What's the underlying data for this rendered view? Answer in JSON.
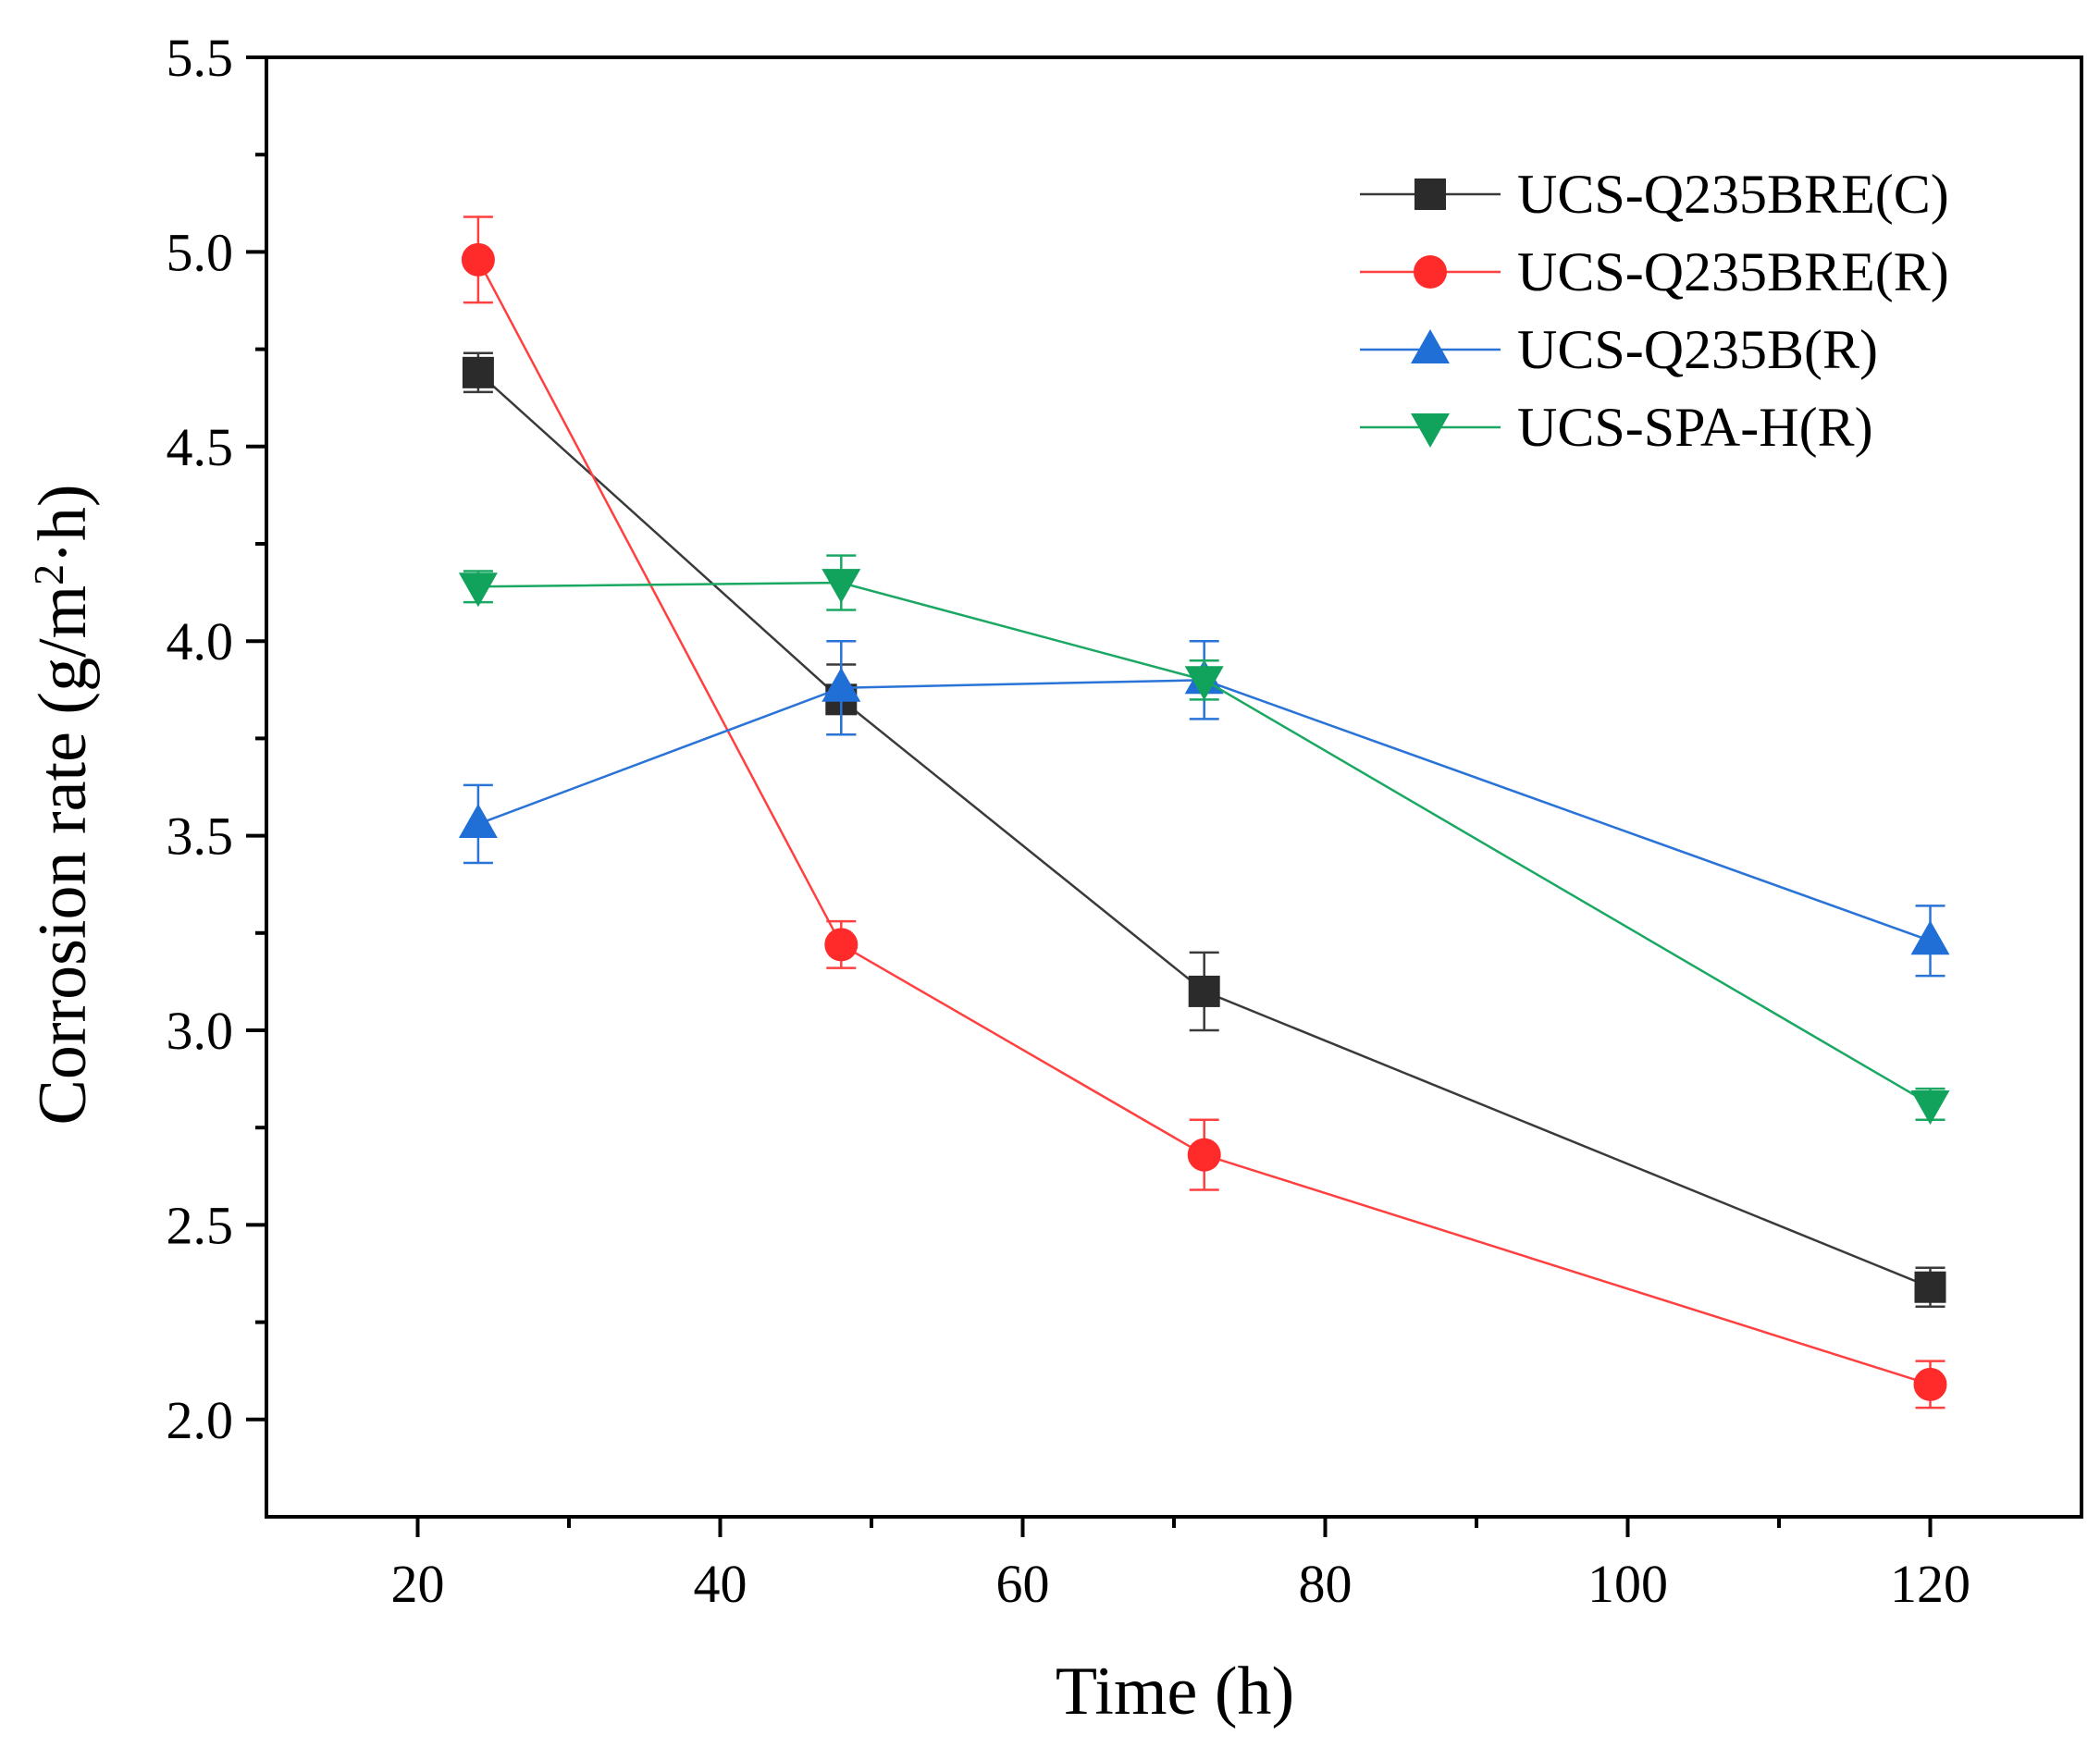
{
  "chart_data": {
    "type": "line",
    "title": "",
    "xlabel": "Time (h)",
    "ylabel": "Corrosion rate (g/m²·h)",
    "ylabel_parts": {
      "before": "Corrosion rate (g/m",
      "sup": "2",
      "after": "·h)"
    },
    "xlim": [
      10,
      130
    ],
    "ylim": [
      1.75,
      5.5
    ],
    "x_ticks": [
      20,
      40,
      60,
      80,
      100,
      120
    ],
    "x_tick_labels": [
      "20",
      "40",
      "60",
      "80",
      "100",
      "120"
    ],
    "y_ticks": [
      2.0,
      2.5,
      3.0,
      3.5,
      4.0,
      4.5,
      5.0,
      5.5
    ],
    "y_tick_labels": [
      "2.0",
      "2.5",
      "3.0",
      "3.5",
      "4.0",
      "4.5",
      "5.0",
      "5.5"
    ],
    "grid": false,
    "legend_position": "top-right",
    "x": [
      24,
      48,
      72,
      120
    ],
    "series": [
      {
        "name": "UCS-Q235BRE(C)",
        "color": "#2b2b2b",
        "line_color": "#3a3a3a",
        "marker": "square",
        "values": [
          4.69,
          3.85,
          3.1,
          2.34
        ],
        "errors": [
          0.05,
          0.09,
          0.1,
          0.05
        ]
      },
      {
        "name": "UCS-Q235BRE(R)",
        "color": "#ff2b2b",
        "line_color": "#ff4040",
        "marker": "circle",
        "values": [
          4.98,
          3.22,
          2.68,
          2.09
        ],
        "errors": [
          0.11,
          0.06,
          0.09,
          0.06
        ]
      },
      {
        "name": "UCS-Q235B(R)",
        "color": "#1f6fd6",
        "line_color": "#2a74d8",
        "marker": "triangle-up",
        "values": [
          3.53,
          3.88,
          3.9,
          3.23
        ],
        "errors": [
          0.1,
          0.12,
          0.1,
          0.09
        ]
      },
      {
        "name": "UCS-SPA-H(R)",
        "color": "#11a35c",
        "line_color": "#1aa862",
        "marker": "triangle-down",
        "values": [
          4.14,
          4.15,
          3.9,
          2.81
        ],
        "errors": [
          0.04,
          0.07,
          0.05,
          0.04
        ]
      }
    ]
  }
}
